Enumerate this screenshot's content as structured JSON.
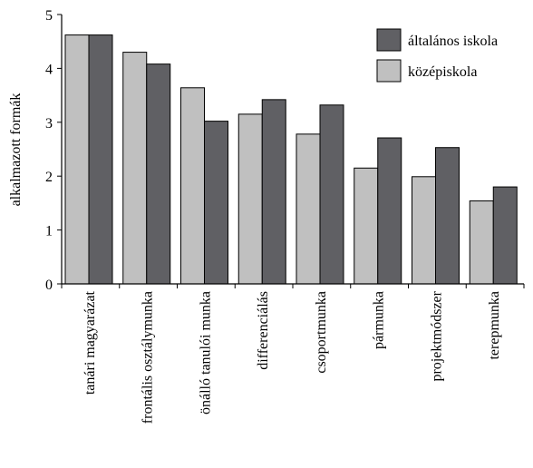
{
  "chart_data": {
    "type": "bar",
    "ylabel": "alkalmazott formák",
    "xlabel": "",
    "ylim": [
      0,
      5
    ],
    "yticks": [
      0,
      1,
      2,
      3,
      4,
      5
    ],
    "grid": false,
    "legend_position": "top-right",
    "categories": [
      "tanári magyarázat",
      "frontális osztálymunka",
      "önálló tanulói munka",
      "differenciálás",
      "csoportmunka",
      "pármunka",
      "projektmódszer",
      "terepmunka"
    ],
    "series": [
      {
        "name": "középiskola",
        "color": "#c0c0c0",
        "values": [
          4.62,
          4.3,
          3.64,
          3.15,
          2.78,
          2.15,
          1.99,
          1.54
        ]
      },
      {
        "name": "általános iskola",
        "color": "#606064",
        "values": [
          4.62,
          4.08,
          3.02,
          3.42,
          3.32,
          2.71,
          2.53,
          1.8
        ]
      }
    ],
    "legend_order": [
      "általános iskola",
      "középiskola"
    ]
  }
}
